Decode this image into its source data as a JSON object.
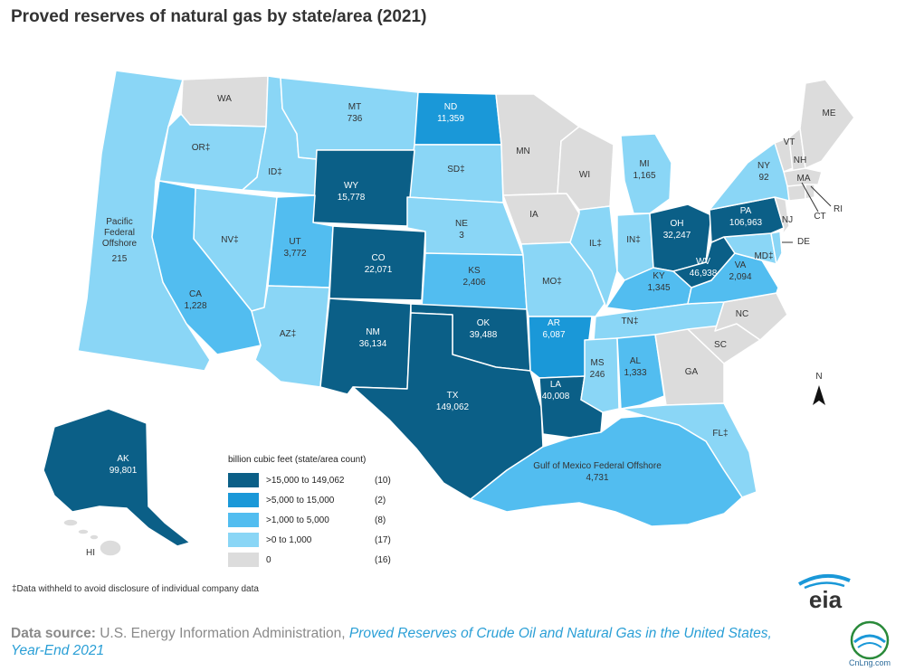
{
  "title": "Proved reserves of natural gas by state/area (2021)",
  "colors": {
    "c1": "#0b5f87",
    "c2": "#1a98d8",
    "c3": "#52bdf0",
    "c4": "#8ad6f6",
    "c5": "#dcdcdc",
    "border": "#ffffff"
  },
  "legend": {
    "heading": "billion cubic feet (state/area count)",
    "items": [
      {
        "range": ">15,000 to 149,062",
        "count": "(10)",
        "color": "#0b5f87"
      },
      {
        "range": ">5,000 to 15,000",
        "count": "(2)",
        "color": "#1a98d8"
      },
      {
        "range": ">1,000 to 5,000",
        "count": "(8)",
        "color": "#52bdf0"
      },
      {
        "range": ">0 to 1,000",
        "count": "(17)",
        "color": "#8ad6f6"
      },
      {
        "range": "0",
        "count": "(16)",
        "color": "#dcdcdc"
      }
    ]
  },
  "labels": {
    "WA": {
      "name": "WA",
      "value": ""
    },
    "OR": {
      "name": "OR‡",
      "value": ""
    },
    "ID": {
      "name": "ID‡",
      "value": ""
    },
    "MT": {
      "name": "MT",
      "value": "736"
    },
    "ND": {
      "name": "ND",
      "value": "11,359"
    },
    "SD": {
      "name": "SD‡",
      "value": ""
    },
    "MN": {
      "name": "MN",
      "value": ""
    },
    "WI": {
      "name": "WI",
      "value": ""
    },
    "MI": {
      "name": "MI",
      "value": "1,165"
    },
    "NY": {
      "name": "NY",
      "value": "92"
    },
    "VT": {
      "name": "VT",
      "value": ""
    },
    "NH": {
      "name": "NH",
      "value": ""
    },
    "ME": {
      "name": "ME",
      "value": ""
    },
    "MA": {
      "name": "MA",
      "value": ""
    },
    "CT": {
      "name": "CT",
      "value": ""
    },
    "RI": {
      "name": "RI",
      "value": ""
    },
    "NJ": {
      "name": "NJ",
      "value": ""
    },
    "DE": {
      "name": "DE",
      "value": ""
    },
    "MD": {
      "name": "MD‡",
      "value": ""
    },
    "PA": {
      "name": "PA",
      "value": "106,963"
    },
    "OH": {
      "name": "OH",
      "value": "32,247"
    },
    "WV": {
      "name": "WV",
      "value": "46,938"
    },
    "VA": {
      "name": "VA",
      "value": "2,094"
    },
    "KY": {
      "name": "KY",
      "value": "1,345"
    },
    "TN": {
      "name": "TN‡",
      "value": ""
    },
    "NC": {
      "name": "NC",
      "value": ""
    },
    "SC": {
      "name": "SC",
      "value": ""
    },
    "GA": {
      "name": "GA",
      "value": ""
    },
    "FL": {
      "name": "FL‡",
      "value": ""
    },
    "AL": {
      "name": "AL",
      "value": "1,333"
    },
    "MS": {
      "name": "MS",
      "value": "246"
    },
    "LA": {
      "name": "LA",
      "value": "40,008"
    },
    "AR": {
      "name": "AR",
      "value": "6,087"
    },
    "MO": {
      "name": "MO‡",
      "value": ""
    },
    "IA": {
      "name": "IA",
      "value": ""
    },
    "IL": {
      "name": "IL‡",
      "value": ""
    },
    "IN": {
      "name": "IN‡",
      "value": ""
    },
    "WY": {
      "name": "WY",
      "value": "15,778"
    },
    "NE": {
      "name": "NE",
      "value": "3"
    },
    "CO": {
      "name": "CO",
      "value": "22,071"
    },
    "KS": {
      "name": "KS",
      "value": "2,406"
    },
    "OK": {
      "name": "OK",
      "value": "39,488"
    },
    "TX": {
      "name": "TX",
      "value": "149,062"
    },
    "NM": {
      "name": "NM",
      "value": "36,134"
    },
    "AZ": {
      "name": "AZ‡",
      "value": ""
    },
    "UT": {
      "name": "UT",
      "value": "3,772"
    },
    "NV": {
      "name": "NV‡",
      "value": ""
    },
    "CA": {
      "name": "CA",
      "value": "1,228"
    },
    "AK": {
      "name": "AK",
      "value": "99,801"
    },
    "HI": {
      "name": "HI",
      "value": ""
    },
    "PFO": {
      "name": "Pacific Federal Offshore",
      "value": "215"
    },
    "GOM": {
      "name": "Gulf of Mexico Federal Offshore",
      "value": "4,731"
    }
  },
  "compass": "N",
  "footnote": "‡Data withheld to avoid disclosure of individual company data",
  "source": {
    "prefix": "Data source:",
    "agency": " U.S. Energy Information Administration, ",
    "link_line1": "Proved Reserves of Crude Oil and Natural Gas in the United States,",
    "link_line2": "Year-End 2021"
  },
  "logo": {
    "text": "eia"
  },
  "watermark": {
    "text": "CnLng.com"
  }
}
